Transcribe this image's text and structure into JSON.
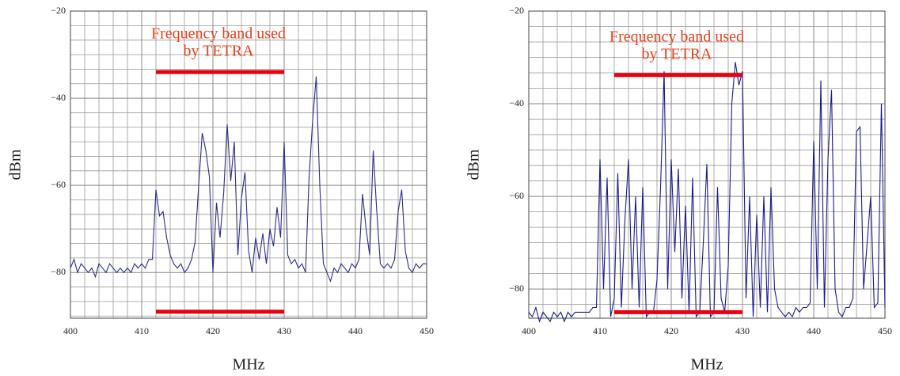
{
  "chart_data": [
    {
      "type": "line",
      "x_label": "MHz",
      "y_label": "dBm",
      "annotation": [
        "Frequency band used",
        "by TETRA"
      ],
      "bands": [
        {
          "x0": 412,
          "x1": 430,
          "y": -34
        },
        {
          "x0": 412,
          "x1": 430,
          "y": -89
        }
      ],
      "band_color": "#e8000f",
      "annotation_color": "#e8401c",
      "xlim": [
        400,
        450
      ],
      "xticks": [
        400,
        410,
        420,
        430,
        440,
        450
      ],
      "ylim": [
        -90.5,
        -20
      ],
      "yticks": [
        {
          "value": -20,
          "label": "−20"
        },
        {
          "value": -40,
          "label": "−40"
        },
        {
          "value": -60,
          "label": "−60"
        },
        {
          "value": -80,
          "label": "−80"
        }
      ],
      "grid": true,
      "x_minor": 5,
      "y_minor": 6,
      "x": [
        400,
        400.5,
        401,
        401.5,
        402,
        402.5,
        403,
        403.5,
        404,
        404.5,
        405,
        405.5,
        406,
        406.5,
        407,
        407.5,
        408,
        408.5,
        409,
        409.5,
        410,
        410.5,
        411,
        411.5,
        412,
        412.5,
        413,
        413.5,
        414,
        414.5,
        415,
        415.5,
        416,
        416.5,
        417,
        417.5,
        418,
        418.5,
        419,
        419.5,
        420,
        420.5,
        421,
        421.5,
        422,
        422.5,
        423,
        423.5,
        424,
        424.5,
        425,
        425.5,
        426,
        426.5,
        427,
        427.5,
        428,
        428.5,
        429,
        429.5,
        430,
        430.5,
        431,
        431.5,
        432,
        432.5,
        433,
        433.5,
        434,
        434.5,
        435,
        435.5,
        436,
        436.5,
        437,
        437.5,
        438,
        438.5,
        439,
        439.5,
        440,
        440.5,
        441,
        441.5,
        442,
        442.5,
        443,
        443.5,
        444,
        444.5,
        445,
        445.5,
        446,
        446.5,
        447,
        447.5,
        448,
        448.5,
        449,
        449.5,
        450
      ],
      "series": [
        {
          "color": "#2b2b8a",
          "values": [
            -79,
            -77,
            -80,
            -78,
            -79,
            -80,
            -79,
            -81,
            -78,
            -79,
            -80,
            -78,
            -79,
            -80,
            -79,
            -80,
            -79,
            -80,
            -78,
            -79,
            -78,
            -79,
            -77,
            -77,
            -61,
            -67,
            -66,
            -72,
            -76,
            -78,
            -79,
            -78,
            -80,
            -79,
            -77,
            -73,
            -60,
            -48,
            -52,
            -58,
            -80,
            -64,
            -72,
            -62,
            -46,
            -59,
            -50,
            -76,
            -63,
            -57,
            -75,
            -80,
            -72,
            -77,
            -71,
            -78,
            -70,
            -74,
            -65,
            -72,
            -50,
            -76,
            -78,
            -77,
            -79,
            -78,
            -80,
            -58,
            -45,
            -35,
            -60,
            -78,
            -80,
            -82,
            -79,
            -80,
            -78,
            -79,
            -80,
            -78,
            -79,
            -77,
            -62,
            -70,
            -76,
            -52,
            -66,
            -78,
            -79,
            -78,
            -79,
            -77,
            -66,
            -61,
            -75,
            -79,
            -80,
            -78,
            -79,
            -78,
            -78
          ]
        }
      ]
    },
    {
      "type": "line",
      "x_label": "MHz",
      "y_label": "dBm",
      "annotation": [
        "Frequency band used",
        "by TETRA"
      ],
      "bands": [
        {
          "x0": 412,
          "x1": 430,
          "y": -33.8
        },
        {
          "x0": 412,
          "x1": 430,
          "y": -85
        }
      ],
      "band_color": "#e8000f",
      "annotation_color": "#e8401c",
      "xlim": [
        400,
        450
      ],
      "xticks": [
        400,
        410,
        420,
        430,
        440,
        450
      ],
      "ylim": [
        -86.3,
        -20
      ],
      "yticks": [
        {
          "value": -20,
          "label": "−20"
        },
        {
          "value": -40,
          "label": "−40"
        },
        {
          "value": -60,
          "label": "−60"
        },
        {
          "value": -80,
          "label": "−80"
        }
      ],
      "grid": true,
      "x_minor": 5,
      "y_minor": 6,
      "x": [
        400,
        400.5,
        401,
        401.5,
        402,
        402.5,
        403,
        403.5,
        404,
        404.5,
        405,
        405.5,
        406,
        406.5,
        407,
        407.5,
        408,
        408.5,
        409,
        409.5,
        410,
        410.5,
        411,
        411.5,
        412,
        412.5,
        413,
        413.5,
        414,
        414.5,
        415,
        415.5,
        416,
        416.5,
        417,
        417.5,
        418,
        418.5,
        419,
        419.5,
        420,
        420.5,
        421,
        421.5,
        422,
        422.5,
        423,
        423.5,
        424,
        424.5,
        425,
        425.5,
        426,
        426.5,
        427,
        427.5,
        428,
        428.5,
        429,
        429.5,
        430,
        430.5,
        431,
        431.5,
        432,
        432.5,
        433,
        433.5,
        434,
        434.5,
        435,
        435.5,
        436,
        436.5,
        437,
        437.5,
        438,
        438.5,
        439,
        439.5,
        440,
        440.5,
        441,
        441.5,
        442,
        442.5,
        443,
        443.5,
        444,
        444.5,
        445,
        445.5,
        446,
        446.5,
        447,
        447.5,
        448,
        448.5,
        449,
        449.5,
        450
      ],
      "series": [
        {
          "color": "#1a1a8c",
          "values": [
            -85,
            -86,
            -84,
            -87,
            -85,
            -86,
            -87,
            -85,
            -86,
            -85,
            -87,
            -85,
            -86,
            -85,
            -85,
            -85,
            -85,
            -85,
            -84,
            -84,
            -52,
            -80,
            -56,
            -86,
            -82,
            -55,
            -84,
            -65,
            -52,
            -80,
            -60,
            -84,
            -58,
            -86,
            -85,
            -85,
            -78,
            -58,
            -33,
            -80,
            -52,
            -72,
            -54,
            -82,
            -62,
            -85,
            -56,
            -86,
            -85,
            -70,
            -53,
            -86,
            -85,
            -58,
            -82,
            -85,
            -75,
            -40,
            -31,
            -36,
            -33,
            -82,
            -60,
            -86,
            -64,
            -84,
            -60,
            -85,
            -58,
            -80,
            -84,
            -85,
            -86,
            -85,
            -86,
            -84,
            -85,
            -84,
            -84,
            -83,
            -48,
            -80,
            -35,
            -84,
            -52,
            -37,
            -80,
            -85,
            -86,
            -84,
            -84,
            -82,
            -46,
            -45,
            -80,
            -70,
            -60,
            -84,
            -83,
            -40,
            -84
          ]
        }
      ]
    }
  ]
}
